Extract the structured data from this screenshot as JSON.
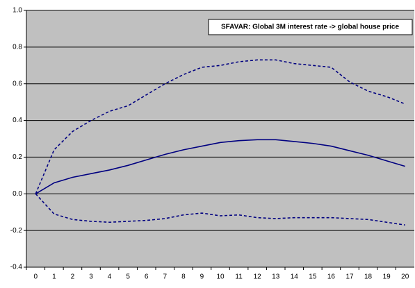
{
  "chart_data": {
    "type": "line",
    "title": "SFAVAR: Global 3M interest rate -> global house price",
    "categories": [
      "0",
      "1",
      "2",
      "3",
      "4",
      "5",
      "6",
      "7",
      "8",
      "9",
      "10",
      "11",
      "12",
      "13",
      "14",
      "15",
      "16",
      "17",
      "18",
      "19",
      "20"
    ],
    "series": [
      {
        "color": "#000080",
        "style": "dashed",
        "values": [
          0,
          0.24,
          0.34,
          0.4,
          0.45,
          0.48,
          0.54,
          0.6,
          0.65,
          0.69,
          0.7,
          0.72,
          0.73,
          0.73,
          0.71,
          0.7,
          0.69,
          0.61,
          0.56,
          0.53,
          0.49
        ]
      },
      {
        "color": "#000080",
        "style": "solid",
        "values": [
          0,
          0.06,
          0.09,
          0.11,
          0.13,
          0.155,
          0.185,
          0.215,
          0.24,
          0.26,
          0.28,
          0.29,
          0.295,
          0.295,
          0.285,
          0.275,
          0.26,
          0.235,
          0.21,
          0.18,
          0.15
        ]
      },
      {
        "color": "#000080",
        "style": "dashed",
        "values": [
          0,
          -0.11,
          -0.14,
          -0.15,
          -0.155,
          -0.15,
          -0.145,
          -0.135,
          -0.115,
          -0.105,
          -0.12,
          -0.115,
          -0.13,
          -0.135,
          -0.13,
          -0.13,
          -0.13,
          -0.135,
          -0.14,
          -0.155,
          -0.17
        ]
      }
    ],
    "ylim": [
      -0.4,
      1
    ],
    "yticks": [
      -0.4,
      -0.2,
      {
        "value": 0,
        "label": "0.0"
      },
      0.2,
      0.4,
      0.6,
      0.8,
      {
        "value": 1,
        "label": "1.0"
      }
    ],
    "grid": true,
    "plot_background": "#c0c0c0"
  }
}
